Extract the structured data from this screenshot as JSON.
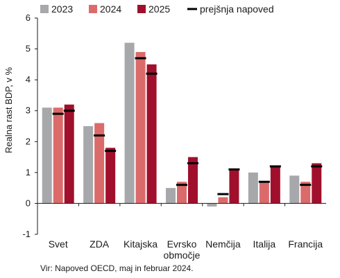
{
  "chart_data": {
    "type": "bar",
    "categories": [
      "Svet",
      "ZDA",
      "Kitajska",
      "Evrsko\nobmočje",
      "Nemčija",
      "Italija",
      "Francija"
    ],
    "ylabel": "Realna rast BDP, v %",
    "ylim": [
      -1,
      6
    ],
    "yticks": [
      -1,
      0,
      1,
      2,
      3,
      4,
      5,
      6
    ],
    "grid": false,
    "legend_position": "top",
    "series": [
      {
        "name": "2023",
        "color": "#a6a8ab",
        "values": [
          3.1,
          2.5,
          5.2,
          0.5,
          -0.1,
          1.0,
          0.9
        ]
      },
      {
        "name": "2024",
        "color": "#db6b6b",
        "values": [
          3.1,
          2.6,
          4.9,
          0.7,
          0.2,
          0.7,
          0.7
        ]
      },
      {
        "name": "2025",
        "color": "#a0102c",
        "values": [
          3.2,
          1.8,
          4.5,
          1.5,
          1.1,
          1.2,
          1.3
        ]
      }
    ],
    "previous_forecast": {
      "name": "prejšnja napoved",
      "color": "#000000",
      "values": {
        "2024": [
          2.9,
          2.2,
          4.7,
          0.6,
          0.3,
          0.7,
          0.6
        ],
        "2025": [
          3.0,
          1.7,
          4.2,
          1.3,
          1.1,
          1.2,
          1.2
        ]
      }
    },
    "source": "Vir: Napoved OECD, maj in februar 2024."
  }
}
